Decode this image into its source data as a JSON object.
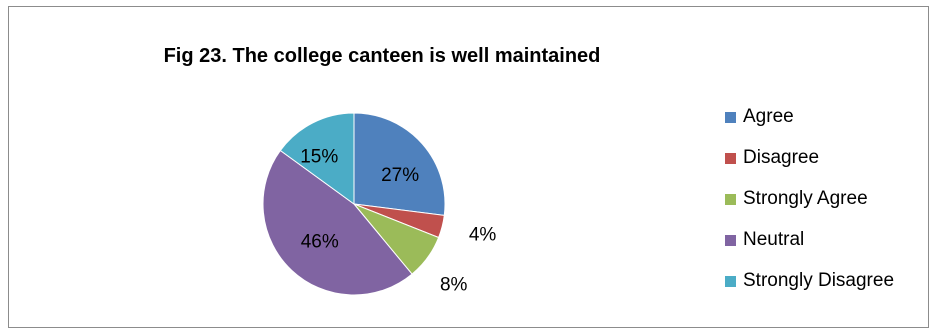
{
  "chart_data": {
    "type": "pie",
    "title": "Fig 23. The college canteen is well maintained",
    "slices": [
      {
        "name": "Agree",
        "value": 27,
        "label": "27%",
        "color": "#4f81bd"
      },
      {
        "name": "Disagree",
        "value": 4,
        "label": "4%",
        "color": "#c0504d"
      },
      {
        "name": "Strongly Agree",
        "value": 8,
        "label": "8%",
        "color": "#9bbb59"
      },
      {
        "name": "Neutral",
        "value": 46,
        "label": "46%",
        "color": "#8064a2"
      },
      {
        "name": "Strongly Disagree",
        "value": 15,
        "label": "15%",
        "color": "#4bacc6"
      }
    ],
    "legend_position": "right"
  }
}
